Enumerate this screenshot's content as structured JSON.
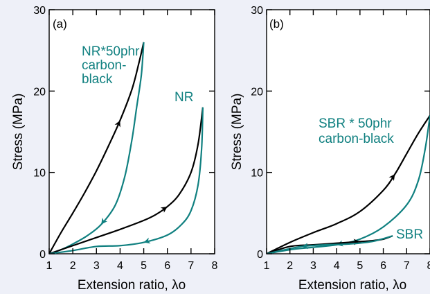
{
  "chart_data": [
    {
      "panel": "(a)",
      "type": "line",
      "xlabel": "Extension ratio, λo",
      "ylabel": "Stress (MPa)",
      "xlim": [
        1,
        8
      ],
      "ylim": [
        0,
        30
      ],
      "xticks": [
        "1",
        "2",
        "3",
        "4",
        "5",
        "6",
        "7",
        "8"
      ],
      "yticks": [
        "0",
        "10",
        "20",
        "30"
      ],
      "annotations": [
        "NR*50phr",
        "carbon-",
        "black",
        "NR"
      ],
      "series": [
        {
          "color": "#000000",
          "points": [
            [
              1,
              0
            ],
            [
              1.5,
              2.6
            ],
            [
              2,
              5
            ],
            [
              2.5,
              7.5
            ],
            [
              3,
              10.2
            ],
            [
              3.5,
              13.2
            ],
            [
              4,
              16.4
            ],
            [
              4.5,
              20.2
            ],
            [
              4.8,
              23.5
            ],
            [
              5,
              26
            ]
          ]
        },
        {
          "color": "#108080",
          "points": [
            [
              5,
              26
            ],
            [
              4.9,
              22
            ],
            [
              4.7,
              18
            ],
            [
              4.5,
              14
            ],
            [
              4.2,
              9.5
            ],
            [
              3.8,
              6
            ],
            [
              3.2,
              3.6
            ],
            [
              2.6,
              2.2
            ],
            [
              2,
              1.2
            ],
            [
              1.5,
              0.5
            ],
            [
              1,
              0
            ]
          ]
        },
        {
          "color": "#000000",
          "points": [
            [
              1,
              0
            ],
            [
              2,
              1
            ],
            [
              3,
              2
            ],
            [
              4,
              3
            ],
            [
              5,
              4.1
            ],
            [
              5.5,
              4.8
            ],
            [
              6,
              5.8
            ],
            [
              6.5,
              7.3
            ],
            [
              7,
              10
            ],
            [
              7.3,
              13.5
            ],
            [
              7.5,
              18
            ]
          ]
        },
        {
          "color": "#108080",
          "points": [
            [
              7.5,
              18
            ],
            [
              7.45,
              13
            ],
            [
              7.3,
              8.5
            ],
            [
              7,
              5.3
            ],
            [
              6.6,
              3.6
            ],
            [
              6,
              2.3
            ],
            [
              5,
              1.4
            ],
            [
              4,
              1
            ],
            [
              3,
              0.9
            ],
            [
              2,
              0.4
            ],
            [
              1,
              0
            ]
          ]
        }
      ]
    },
    {
      "panel": "(b)",
      "type": "line",
      "xlabel": "Extension ratio, λo",
      "ylabel": "Stress (MPa)",
      "xlim": [
        1,
        8
      ],
      "ylim": [
        0,
        30
      ],
      "xticks": [
        "1",
        "2",
        "3",
        "4",
        "5",
        "6",
        "7",
        "8"
      ],
      "yticks": [
        "0",
        "10",
        "20",
        "30"
      ],
      "annotations": [
        "SBR * 50phr",
        "carbon-black",
        "SBR"
      ],
      "series": [
        {
          "color": "#000000",
          "points": [
            [
              1,
              0
            ],
            [
              2,
              1.4
            ],
            [
              3,
              2.6
            ],
            [
              4,
              3.7
            ],
            [
              5,
              5.2
            ],
            [
              6,
              7.8
            ],
            [
              6.5,
              9.8
            ],
            [
              7,
              12.3
            ],
            [
              7.5,
              14.8
            ],
            [
              8,
              17
            ]
          ]
        },
        {
          "color": "#108080",
          "points": [
            [
              8,
              17
            ],
            [
              7.8,
              13
            ],
            [
              7.5,
              9
            ],
            [
              7,
              6
            ],
            [
              6,
              3.3
            ],
            [
              5,
              1.8
            ],
            [
              4,
              1.1
            ],
            [
              3,
              0.8
            ],
            [
              2,
              0.5
            ],
            [
              1,
              0
            ]
          ]
        },
        {
          "color": "#000000",
          "points": [
            [
              1,
              0
            ],
            [
              2,
              0.9
            ],
            [
              3,
              1.1
            ],
            [
              4,
              1.3
            ],
            [
              5,
              1.5
            ],
            [
              5.5,
              1.6
            ],
            [
              6,
              1.8
            ],
            [
              6.4,
              2.2
            ]
          ]
        },
        {
          "color": "#108080",
          "points": [
            [
              6.4,
              2.2
            ],
            [
              5.5,
              1.5
            ],
            [
              4.5,
              1.2
            ],
            [
              3.5,
              1.1
            ],
            [
              2.5,
              0.9
            ],
            [
              1.8,
              0.5
            ],
            [
              1,
              0
            ]
          ]
        }
      ]
    }
  ]
}
